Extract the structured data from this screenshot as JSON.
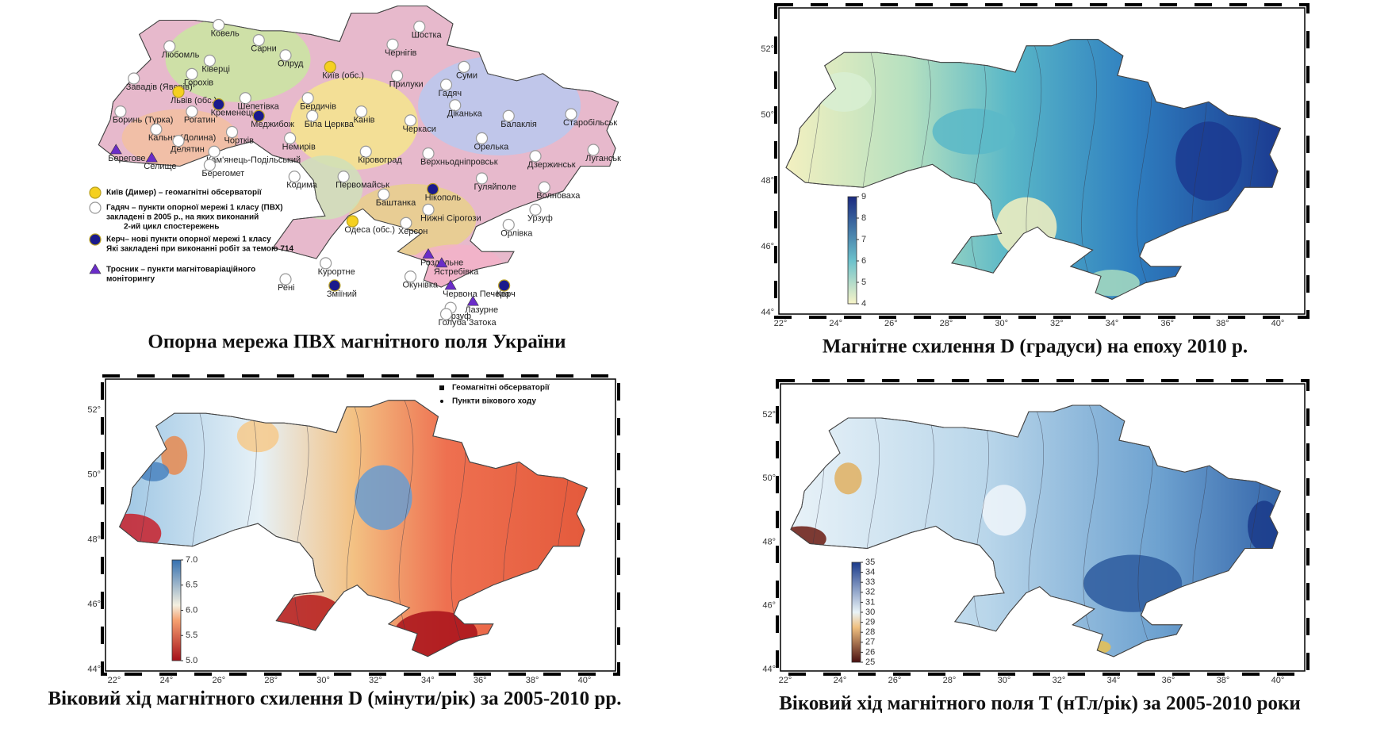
{
  "panels": [
    {
      "caption": "Опорна мережа ПВХ  магнітного поля України",
      "cities": [
        "Ковель",
        "Сарни",
        "Шостка",
        "Любомль",
        "Ківерці",
        "Олруд",
        "Чернігів",
        "Київ (обс.)",
        "Суми",
        "Горохів",
        "Завадів (Яворів)",
        "Прилуки",
        "Львів (обс.)",
        "Кременець",
        "Шепетівка",
        "Бердичів",
        "Гадяч",
        "Боринь (Турка)",
        "Рогатин",
        "Меджибож",
        "Біла Церква",
        "Канів",
        "Черкаси",
        "Діканька",
        "Балаклія",
        "Старобільськ",
        "Кальна (Долина)",
        "Делятин",
        "Чортків",
        "Немирів",
        "Кам'янець-Подільський",
        "Кіровоград",
        "Верхньодніпровськ",
        "Орелька",
        "Луганськ",
        "Берегове",
        "Селище",
        "Берегомет",
        "Кодима",
        "Первомайськ",
        "Дзержинськ",
        "Гуляйполе",
        "Волноваха",
        "Нікополь",
        "Баштанка",
        "Нижні Сірогози",
        "Урзуф",
        "Одеса (обс.)",
        "Херсон",
        "Орлівка",
        "Роздольне",
        "Ястребівка",
        "Курортне",
        "Рені",
        "Зміїний",
        "Окунівка",
        "Червона Печера",
        "Керч",
        "Лазурне",
        "Гурзуф",
        "Голуба Затока"
      ],
      "legend": [
        {
          "lines": [
            "Київ (Димер) – геомагнітні обсерваторії"
          ]
        },
        {
          "lines": [
            "Гадяч – пункти опорної мережі 1 класу (ПВХ)",
            "закладені в 2005 р., на яких виконаний",
            "2-ий цикл спостережень"
          ]
        },
        {
          "lines": [
            "Керч– нові пункти опорної мережі 1 класу",
            "Які закладені при виконанні робіт за темою 714"
          ]
        },
        {
          "lines": [
            "Тросник – пункти магнітоваріаційного",
            "моніторингу"
          ]
        }
      ]
    },
    {
      "caption": "Магнітне  схилення  D (градуси)  на епоху 2010 р.",
      "lat_ticks": [
        {
          "value": 44,
          "label": "44°"
        },
        {
          "value": 46,
          "label": "46°"
        },
        {
          "value": 48,
          "label": "48°"
        },
        {
          "value": 50,
          "label": "50°"
        },
        {
          "value": 52,
          "label": "52°"
        }
      ],
      "lon_ticks": [
        {
          "value": 22,
          "label": "22°"
        },
        {
          "value": 24,
          "label": "24°"
        },
        {
          "value": 26,
          "label": "26°"
        },
        {
          "value": 28,
          "label": "28°"
        },
        {
          "value": 30,
          "label": "30°"
        },
        {
          "value": 32,
          "label": "32°"
        },
        {
          "value": 34,
          "label": "34°"
        },
        {
          "value": 36,
          "label": "36°"
        },
        {
          "value": 38,
          "label": "38°"
        },
        {
          "value": 40,
          "label": "40°"
        }
      ],
      "colorbar_ticks": [
        4,
        5,
        6,
        7,
        8,
        9
      ]
    },
    {
      "caption": "Віковий хід магнітного схилення D (мінути/рік) за 2005-2010 рр.",
      "legend": [
        "Геомагнітні обсерваторії",
        "Пункти вікового ходу"
      ],
      "lat_ticks": [
        {
          "value": 44,
          "label": "44°"
        },
        {
          "value": 46,
          "label": "46°"
        },
        {
          "value": 48,
          "label": "48°"
        },
        {
          "value": 50,
          "label": "50°"
        },
        {
          "value": 52,
          "label": "52°"
        }
      ],
      "lon_ticks": [
        {
          "value": 22,
          "label": "22°"
        },
        {
          "value": 24,
          "label": "24°"
        },
        {
          "value": 26,
          "label": "26°"
        },
        {
          "value": 28,
          "label": "28°"
        },
        {
          "value": 30,
          "label": "30°"
        },
        {
          "value": 32,
          "label": "32°"
        },
        {
          "value": 34,
          "label": "34°"
        },
        {
          "value": 36,
          "label": "36°"
        },
        {
          "value": 38,
          "label": "38°"
        },
        {
          "value": 40,
          "label": "40°"
        }
      ],
      "colorbar_ticks": [
        {
          "value": 5,
          "label": "5.0"
        },
        5.5,
        {
          "value": 6,
          "label": "6.0"
        },
        6.5,
        {
          "value": 7,
          "label": "7.0"
        }
      ]
    },
    {
      "caption": "Віковий  хід  магнітного  поля  T  (нТл/рік)  за  2005-2010  роки",
      "lat_ticks": [
        {
          "value": 44,
          "label": "44°"
        },
        {
          "value": 46,
          "label": "46°"
        },
        {
          "value": 48,
          "label": "48°"
        },
        {
          "value": 50,
          "label": "50°"
        },
        {
          "value": 52,
          "label": "52°"
        }
      ],
      "lon_ticks": [
        {
          "value": 22,
          "label": "22°"
        },
        {
          "value": 24,
          "label": "24°"
        },
        {
          "value": 26,
          "label": "26°"
        },
        {
          "value": 28,
          "label": "28°"
        },
        {
          "value": 30,
          "label": "30°"
        },
        {
          "value": 32,
          "label": "32°"
        },
        {
          "value": 34,
          "label": "34°"
        },
        {
          "value": 36,
          "label": "36°"
        },
        {
          "value": 38,
          "label": "38°"
        },
        {
          "value": 40,
          "label": "40°"
        }
      ],
      "colorbar_ticks": [
        25,
        26,
        27,
        28,
        29,
        30,
        31,
        32,
        33,
        34,
        35
      ]
    }
  ]
}
